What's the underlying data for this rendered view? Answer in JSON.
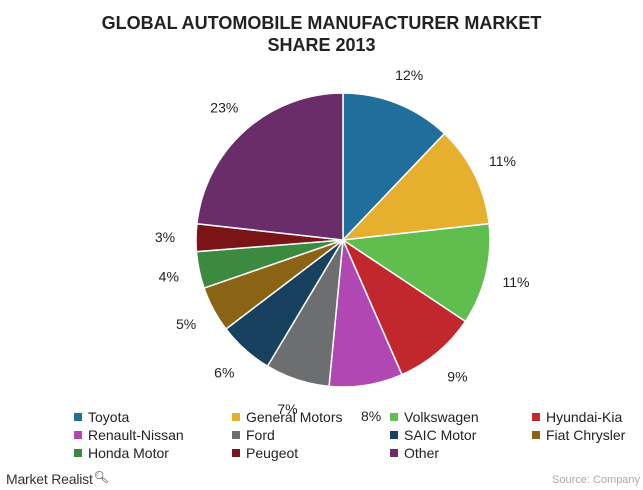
{
  "chart_data": {
    "type": "pie",
    "title": [
      "GLOBAL AUTOMOBILE MANUFACTURER MARKET",
      "SHARE 2013"
    ],
    "slices": [
      {
        "name": "Toyota",
        "value": 12,
        "label": "12%",
        "color": "#1F6E9C"
      },
      {
        "name": "General Motors",
        "value": 11,
        "label": "11%",
        "color": "#E6AF2E"
      },
      {
        "name": "Volkswagen",
        "value": 11,
        "label": "11%",
        "color": "#5FBE4E"
      },
      {
        "name": "Hyundai-Kia",
        "value": 9,
        "label": "9%",
        "color": "#C1272D"
      },
      {
        "name": "Renault-Nissan",
        "value": 8,
        "label": "8%",
        "color": "#B047B3"
      },
      {
        "name": "Ford",
        "value": 7,
        "label": "7%",
        "color": "#6D6E70"
      },
      {
        "name": "SAIC Motor",
        "value": 6,
        "label": "6%",
        "color": "#17415F"
      },
      {
        "name": "Fiat Chrysler",
        "value": 5,
        "label": "5%",
        "color": "#8A6414"
      },
      {
        "name": "Honda Motor",
        "value": 4,
        "label": "4%",
        "color": "#3C8A3F"
      },
      {
        "name": "Peugeot",
        "value": 3,
        "label": "3%",
        "color": "#7A1416"
      },
      {
        "name": "Other",
        "value": 23,
        "label": "23%",
        "color": "#6A2D6A"
      }
    ],
    "start_angle": "12 o'clock",
    "direction": "clockwise",
    "legend_position": "bottom"
  },
  "brand": {
    "name": "Market Realist",
    "icon": "magnifier-icon"
  },
  "source": "Source: Company"
}
